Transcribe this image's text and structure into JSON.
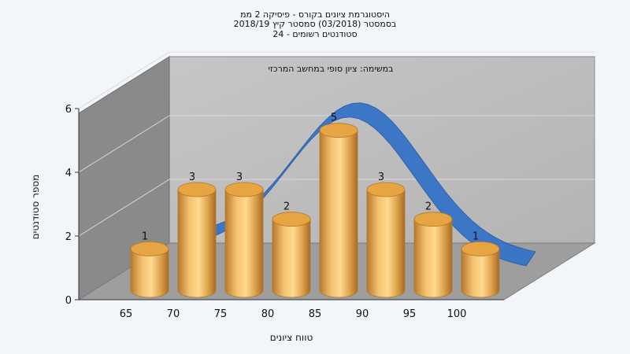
{
  "chart_data": {
    "type": "bar",
    "title_lines": [
      "היסטוגרמת ציונים בקורס - פיסיקה 2 ממ",
      "בסמסטר  (03/2018)  סמסטר קיץ 2018/19",
      "סטודנטים רשומים - 24"
    ],
    "subtitle": "במשימה: ציון סופי במחשב המרכזי",
    "xlabel": "טווח ציונים",
    "ylabel": "מספר סטודנטים",
    "x_ticks": [
      "65",
      "70",
      "75",
      "80",
      "85",
      "90",
      "95",
      "100"
    ],
    "y_ticks": [
      "0",
      "2",
      "4",
      "6"
    ],
    "ylim": [
      0,
      6
    ],
    "values": [
      1,
      3,
      3,
      2,
      5,
      3,
      2,
      1
    ],
    "data_labels": [
      "1",
      "3",
      "3",
      "2",
      "5",
      "3",
      "2",
      "1"
    ],
    "bar_color": "#f0b760",
    "curve_color": "#3674c8",
    "grid": true
  }
}
